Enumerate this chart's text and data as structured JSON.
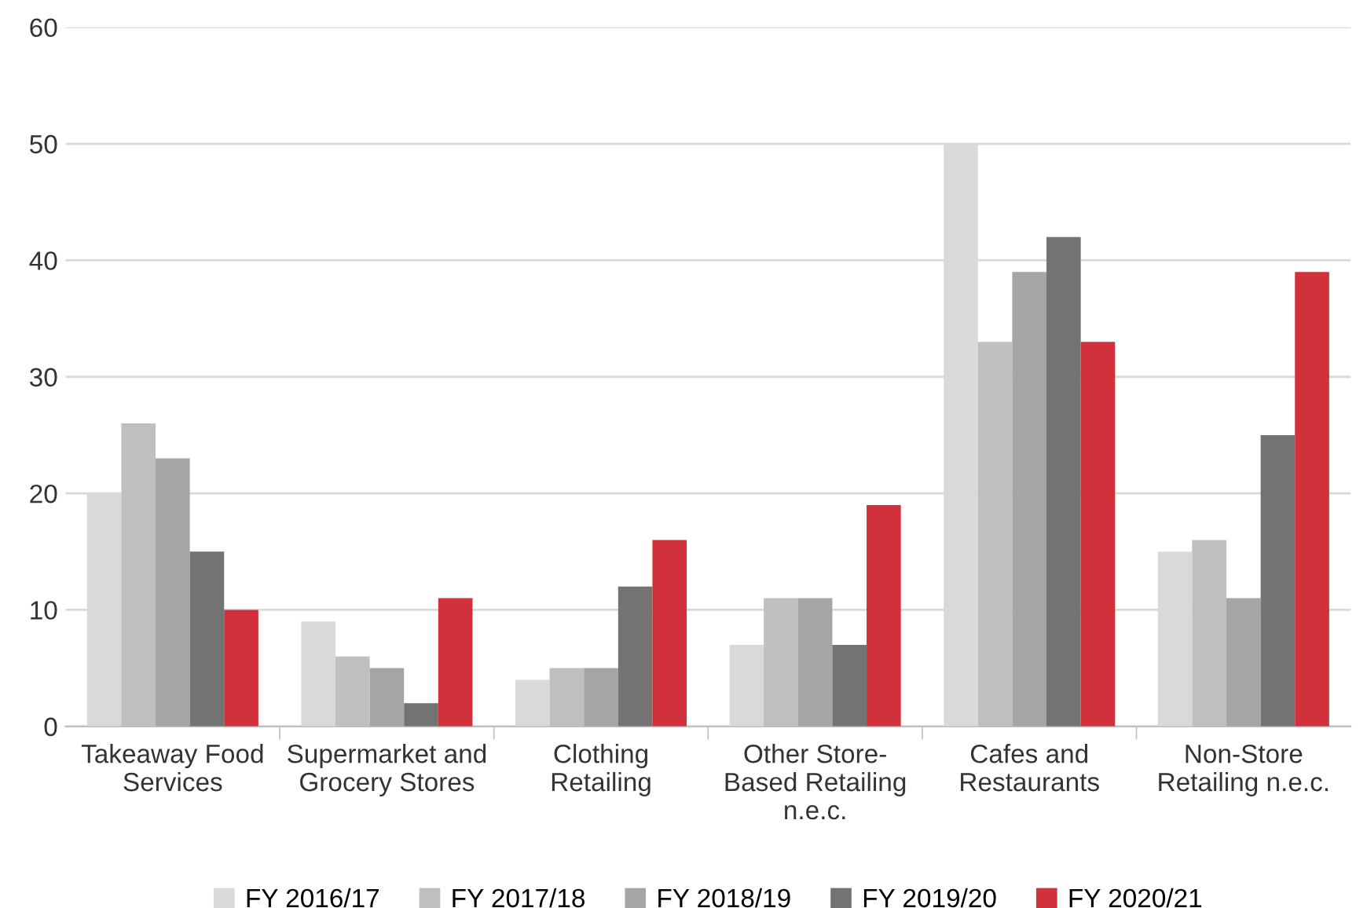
{
  "chart_data": {
    "type": "bar",
    "categories": [
      "Takeaway Food\nServices",
      "Supermarket and\nGrocery Stores",
      "Clothing\nRetailing",
      "Other Store-\nBased Retailing\nn.e.c.",
      "Cafes and\nRestaurants",
      "Non-Store\nRetailing n.e.c."
    ],
    "series": [
      {
        "name": "FY 2016/17",
        "color": "#d9d9d9",
        "values": [
          20,
          9,
          4,
          7,
          50,
          15
        ]
      },
      {
        "name": "FY 2017/18",
        "color": "#bfbfbf",
        "values": [
          26,
          6,
          5,
          11,
          33,
          16
        ]
      },
      {
        "name": "FY 2018/19",
        "color": "#a5a5a5",
        "values": [
          23,
          5,
          5,
          11,
          39,
          11
        ]
      },
      {
        "name": "FY 2019/20",
        "color": "#737373",
        "values": [
          15,
          2,
          12,
          7,
          42,
          25
        ]
      },
      {
        "name": "FY 2020/21",
        "color": "#d0313b",
        "values": [
          10,
          11,
          16,
          19,
          33,
          39
        ]
      }
    ],
    "ylim": [
      0,
      60
    ],
    "yticks": [
      0,
      10,
      20,
      30,
      40,
      50,
      60
    ],
    "grid": "y",
    "legend": "bottom"
  }
}
